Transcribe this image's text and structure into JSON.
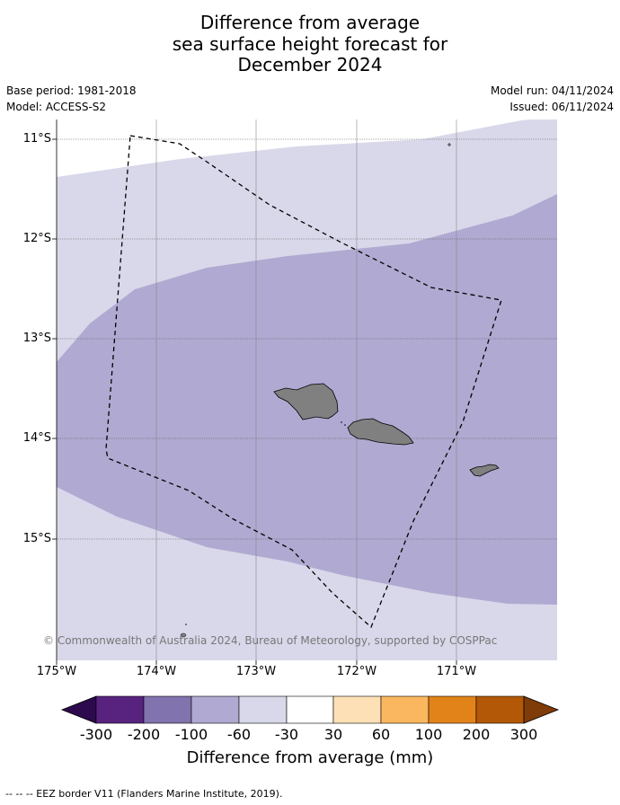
{
  "title": {
    "line1": "Difference from average",
    "line2": "sea surface height forecast for",
    "line3": "December 2024"
  },
  "meta": {
    "base_period": "Base period: 1981-2018",
    "model": "Model: ACCESS-S2",
    "model_run": "Model run: 04/11/2024",
    "issued": "Issued: 06/11/2024"
  },
  "map": {
    "lat_labels": [
      "11°S",
      "12°S",
      "13°S",
      "14°S",
      "15°S"
    ],
    "lon_labels": [
      "175°W",
      "174°W",
      "173°W",
      "172°W",
      "171°W"
    ],
    "copyright": "© Commonwealth of Australia 2024, Bureau of Meteorology, supported by COSPPac",
    "colors": {
      "light_band": "#d8d8ea",
      "mid_band": "#b0a9d1",
      "land": "#808080",
      "grid": "#555555"
    }
  },
  "colorbar": {
    "ticks": [
      "-300",
      "-200",
      "-100",
      "-60",
      "-30",
      "30",
      "60",
      "100",
      "200",
      "300"
    ],
    "colors": [
      "#2d0a4e",
      "#58237f",
      "#8173ad",
      "#b0a9d1",
      "#d8d8ea",
      "#ffffff",
      "#fee0b6",
      "#fbb75f",
      "#e2831a",
      "#b35806",
      "#7f3b08"
    ],
    "label": "Difference from average (mm)"
  },
  "footnote": "--  --  -- EEZ border V11 (Flanders Marine Institute, 2019)."
}
